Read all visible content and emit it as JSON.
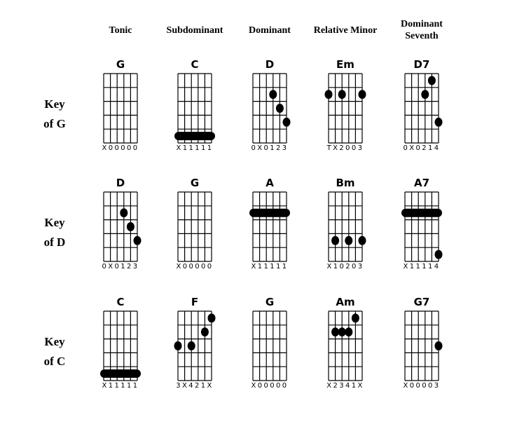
{
  "columns": [
    "Tonic",
    "Subdominant",
    "Dominant",
    "Relative Minor",
    "Dominant Seventh"
  ],
  "rows": [
    {
      "label_line1": "Key",
      "label_line2": "of G",
      "chords": [
        {
          "name": "G",
          "fingering": "X00000",
          "dots": [],
          "barre": null
        },
        {
          "name": "C",
          "fingering": "X11111",
          "dots": [],
          "barre": 5
        },
        {
          "name": "D",
          "fingering": "0X0123",
          "dots": [
            [
              3,
              2
            ],
            [
              4,
              3
            ],
            [
              5,
              4
            ]
          ],
          "barre": null
        },
        {
          "name": "Em",
          "fingering": "TX2003",
          "dots": [
            [
              0,
              2
            ],
            [
              2,
              2
            ],
            [
              5,
              2
            ]
          ],
          "barre": null
        },
        {
          "name": "D7",
          "fingering": "0X0214",
          "dots": [
            [
              4,
              1
            ],
            [
              3,
              2
            ],
            [
              5,
              4
            ]
          ],
          "barre": null
        }
      ]
    },
    {
      "label_line1": "Key",
      "label_line2": "of D",
      "chords": [
        {
          "name": "D",
          "fingering": "0X0123",
          "dots": [
            [
              3,
              2
            ],
            [
              4,
              3
            ],
            [
              5,
              4
            ]
          ],
          "barre": null
        },
        {
          "name": "G",
          "fingering": "X00000",
          "dots": [],
          "barre": null
        },
        {
          "name": "A",
          "fingering": "X11111",
          "dots": [],
          "barre": 2
        },
        {
          "name": "Bm",
          "fingering": "X10203",
          "dots": [
            [
              1,
              4
            ],
            [
              3,
              4
            ],
            [
              5,
              4
            ]
          ],
          "barre": null
        },
        {
          "name": "A7",
          "fingering": "X11114",
          "dots": [
            [
              5,
              5
            ]
          ],
          "barre": 2
        }
      ]
    },
    {
      "label_line1": "Key",
      "label_line2": "of C",
      "chords": [
        {
          "name": "C",
          "fingering": "X11111",
          "dots": [],
          "barre": 5
        },
        {
          "name": "F",
          "fingering": "3X421X",
          "dots": [
            [
              5,
              1
            ],
            [
              4,
              2
            ],
            [
              0,
              3
            ],
            [
              2,
              3
            ]
          ],
          "barre": null
        },
        {
          "name": "G",
          "fingering": "X00000",
          "dots": [],
          "barre": null
        },
        {
          "name": "Am",
          "fingering": "X2341X",
          "dots": [
            [
              4,
              1
            ],
            [
              1,
              2
            ],
            [
              2,
              2
            ],
            [
              3,
              2
            ]
          ],
          "barre": null
        },
        {
          "name": "G7",
          "fingering": "X00003",
          "dots": [
            [
              5,
              3
            ]
          ],
          "barre": null
        }
      ]
    }
  ]
}
